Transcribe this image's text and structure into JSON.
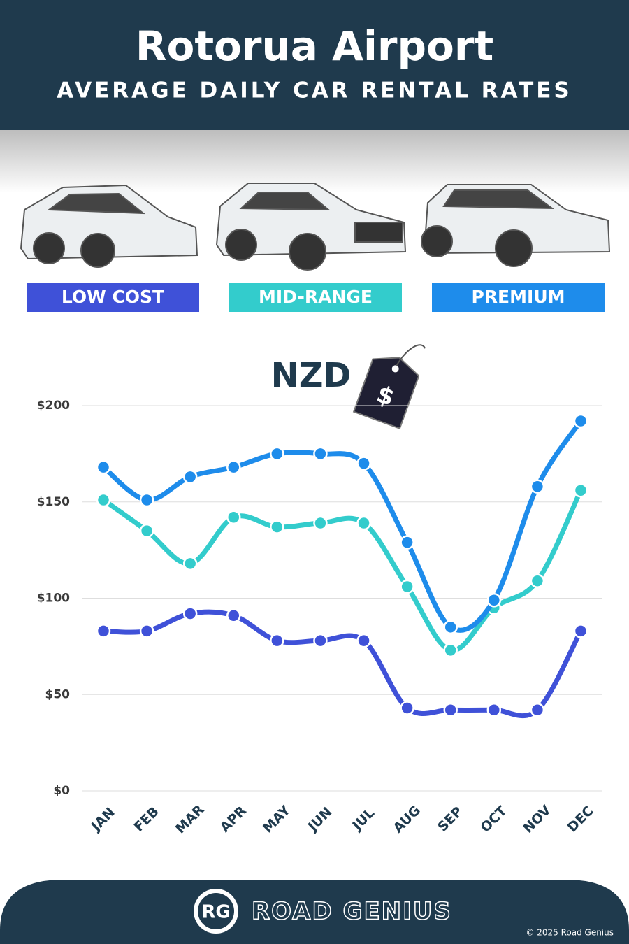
{
  "chart_data": {
    "type": "line",
    "title": "Rotorua Airport",
    "subtitle": "AVERAGE DAILY CAR RENTAL RATES",
    "unit_label": "NZD",
    "tag_label": "$",
    "categories": [
      "JAN",
      "FEB",
      "MAR",
      "APR",
      "MAY",
      "JUN",
      "JUL",
      "AUG",
      "SEP",
      "OCT",
      "NOV",
      "DEC"
    ],
    "series": [
      {
        "name": "LOW COST",
        "color": "#3f51d8",
        "values": [
          83,
          83,
          92,
          91,
          78,
          78,
          78,
          43,
          42,
          42,
          42,
          83
        ]
      },
      {
        "name": "MID-RANGE",
        "color": "#33cccc",
        "values": [
          151,
          135,
          118,
          142,
          137,
          139,
          139,
          106,
          73,
          95,
          109,
          156
        ]
      },
      {
        "name": "PREMIUM",
        "color": "#1e8ceb",
        "values": [
          168,
          151,
          163,
          168,
          175,
          175,
          170,
          129,
          85,
          99,
          158,
          192
        ]
      }
    ],
    "ylim": [
      0,
      200
    ],
    "yticks": [
      {
        "value": 0,
        "label": "$0"
      },
      {
        "value": 50,
        "label": "$50"
      },
      {
        "value": 100,
        "label": "$100"
      },
      {
        "value": 150,
        "label": "$150"
      },
      {
        "value": 200,
        "label": "$200"
      }
    ],
    "grid": true,
    "footer": {
      "logo": "RG",
      "brand": "ROAD GENIUS",
      "copyright": "© 2025 Road Genius"
    }
  }
}
